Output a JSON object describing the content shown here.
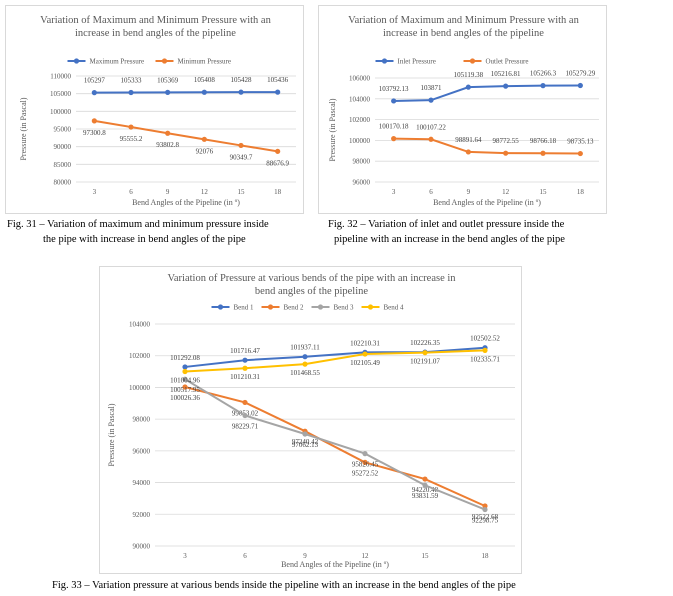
{
  "chart_data": [
    {
      "type": "line",
      "title": "Variation of Maximum and Minimum Pressure with an increase in bend angles of the pipeline",
      "xlabel": "Bend Angles of the Pipeline (in º)",
      "ylabel": "Pressure (in Pascal)",
      "categories": [
        "3",
        "6",
        "9",
        "12",
        "15",
        "18"
      ],
      "ylim": [
        80000,
        110000
      ],
      "yticks": [
        "80000",
        "85000",
        "90000",
        "95000",
        "100000",
        "105000",
        "110000"
      ],
      "legend_position": "top",
      "series": [
        {
          "name": "Maximum Pressure",
          "color": "#4472c4",
          "values": [
            105297,
            105333,
            105369,
            105408,
            105428,
            105436
          ],
          "labels": [
            "105297",
            "105333",
            "105369",
            "105408",
            "105428",
            "105436"
          ]
        },
        {
          "name": "Minimum Pressure",
          "color": "#ed7d31",
          "values": [
            97300.8,
            95555.2,
            93802.8,
            92076,
            90349.7,
            88676.9
          ],
          "labels": [
            "97300.8",
            "95555.2",
            "93802.8",
            "92076",
            "90349.7",
            "88676.9"
          ]
        }
      ]
    },
    {
      "type": "line",
      "title": "Variation of Maximum and Minimum Pressure with an increase in bend angles of the pipeline",
      "xlabel": "Bend Angles of the Pipeline (in º)",
      "ylabel": "Pressure (in Pascal)",
      "categories": [
        "3",
        "6",
        "9",
        "12",
        "15",
        "18"
      ],
      "ylim": [
        96000,
        106000
      ],
      "yticks": [
        "96000",
        "98000",
        "100000",
        "102000",
        "104000",
        "106000"
      ],
      "legend_position": "top",
      "series": [
        {
          "name": "Inlet Pressure",
          "color": "#4472c4",
          "values": [
            103792.13,
            103871,
            105119.38,
            105216.81,
            105266.3,
            105279.29
          ],
          "labels": [
            "103792.13",
            "103871",
            "105119.38",
            "105216.81",
            "105266.3",
            "105279.29"
          ]
        },
        {
          "name": "Outlet Pressure",
          "color": "#ed7d31",
          "values": [
            100170.18,
            100107.22,
            98891.64,
            98772.55,
            98766.18,
            98735.13
          ],
          "labels": [
            "100170.18",
            "100107.22",
            "98891.64",
            "98772.55",
            "98766.18",
            "98735.13"
          ]
        }
      ]
    },
    {
      "type": "line",
      "title": "Variation of Pressure at various bends of the pipe with an increase in bend angles of the pipeline",
      "xlabel": "Bend Angles of the Pipeline (in º)",
      "ylabel": "Pressure (in Pascal)",
      "categories": [
        "3",
        "6",
        "9",
        "12",
        "15",
        "18"
      ],
      "ylim": [
        90000,
        104000
      ],
      "yticks": [
        "90000",
        "92000",
        "94000",
        "96000",
        "98000",
        "100000",
        "102000",
        "104000"
      ],
      "legend_position": "top",
      "series": [
        {
          "name": "Bend 1",
          "color": "#4472c4",
          "values": [
            101292.08,
            101716.47,
            101937.11,
            102210.31,
            102226.35,
            102502.52
          ],
          "labels": [
            "101292.08",
            "101716.47",
            "101937.11",
            "102210.31",
            "102226.35",
            "102502.52"
          ]
        },
        {
          "name": "Bend 2",
          "color": "#ed7d31",
          "values": [
            100026.36,
            99053.02,
            97240.42,
            95272.52,
            94220.48,
            92522.68
          ],
          "labels": [
            "100026.36",
            "99053.02",
            "97240.42",
            "95272.52",
            "94220.48",
            "92522.68"
          ]
        },
        {
          "name": "Bend 3",
          "color": "#a5a5a5",
          "values": [
            100517.95,
            98229.71,
            97062.13,
            95826.45,
            93831.59,
            92298.75
          ],
          "labels": [
            "100517.95",
            "98229.71",
            "97062.13",
            "95826.45",
            "93831.59",
            "92298.75"
          ]
        },
        {
          "name": "Bend 4",
          "color": "#ffc000",
          "values": [
            101004.96,
            101210.31,
            101468.55,
            102105.49,
            102191.07,
            102335.71
          ],
          "labels": [
            "101004.96",
            "101210.31",
            "101468.55",
            "102105.49",
            "102191.07",
            "102335.71"
          ]
        }
      ]
    }
  ],
  "captions": {
    "fig31_line1": "Fig. 31 – Variation of maximum and minimum pressure inside",
    "fig31_line2": "the pipe with increase in bend angles of the pipe",
    "fig32_line1": "Fig. 32 – Variation of inlet and outlet pressure inside the",
    "fig32_line2": "pipeline with an increase in the bend angles of the pipe",
    "fig33": "Fig. 33 – Variation pressure at various bends inside the pipeline with an increase in the bend angles of the pipe"
  }
}
